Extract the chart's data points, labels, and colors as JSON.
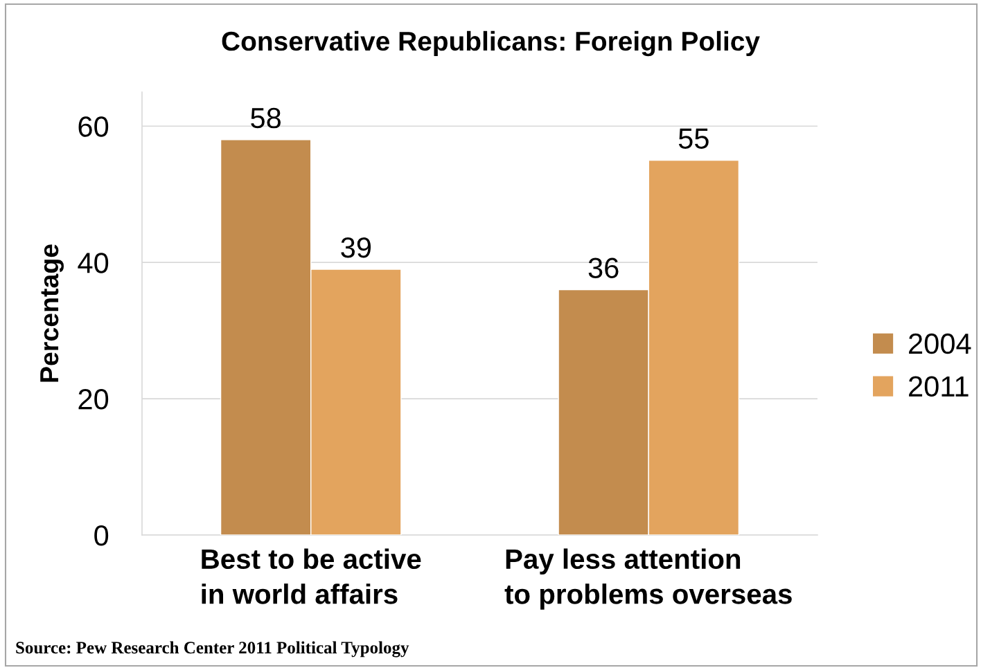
{
  "chart_data": {
    "type": "bar",
    "title": "Conservative Republicans: Foreign Policy",
    "ylabel": "Percentage",
    "categories": [
      "Best to be active\nin world affairs",
      "Pay less attention\nto problems overseas"
    ],
    "series": [
      {
        "name": "2004",
        "color": "#c38c4e",
        "values": [
          58,
          36
        ]
      },
      {
        "name": "2011",
        "color": "#e3a45e",
        "values": [
          39,
          55
        ]
      }
    ],
    "ylim": [
      0,
      65
    ],
    "yticks": [
      0,
      20,
      40,
      60
    ],
    "grid": "y",
    "legend": "right",
    "data_labels": true,
    "annotations": [
      "Source: Pew Research Center 2011 Political Typology"
    ]
  }
}
